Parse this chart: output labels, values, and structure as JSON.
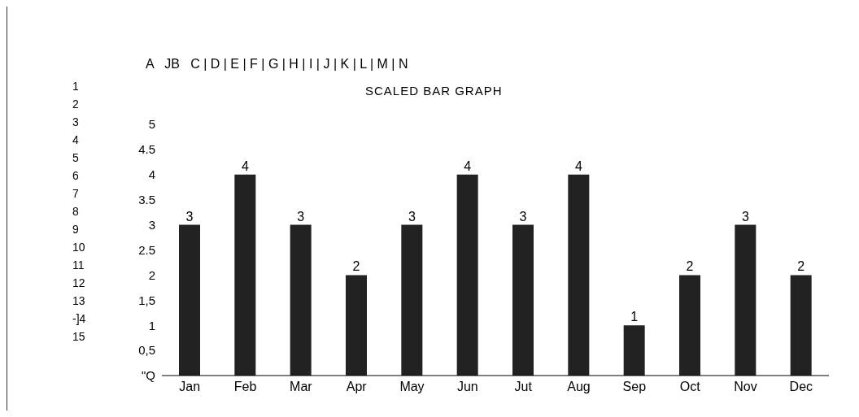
{
  "chart_data": {
    "type": "bar",
    "title": "SCALED BAR GRAPH",
    "categories": [
      "Jan",
      "Feb",
      "Mar",
      "Apr",
      "May",
      "Jun",
      "Jut",
      "Aug",
      "Sep",
      "Oct",
      "Nov",
      "Dec"
    ],
    "values": [
      3,
      4,
      3,
      2,
      3,
      4,
      3,
      4,
      1,
      2,
      3,
      2
    ],
    "color": "#222222",
    "ylim": [
      0,
      5
    ],
    "yticks": [
      {
        "value": 0,
        "label": "\"Q"
      },
      {
        "value": 0.5,
        "label": "0,5"
      },
      1,
      {
        "value": 1.5,
        "label": "1,5"
      },
      2,
      2.5,
      3,
      3.5,
      4,
      4.5,
      5
    ],
    "data_labels": true,
    "annotations": [
      "A   JB   C | D | E | F | G | H | I | J | K | L | M | N",
      "1",
      "2",
      "3",
      "4",
      "5",
      "6",
      "7",
      "8",
      "9",
      "10",
      "11",
      "12",
      "13",
      "-]4",
      "15"
    ]
  }
}
